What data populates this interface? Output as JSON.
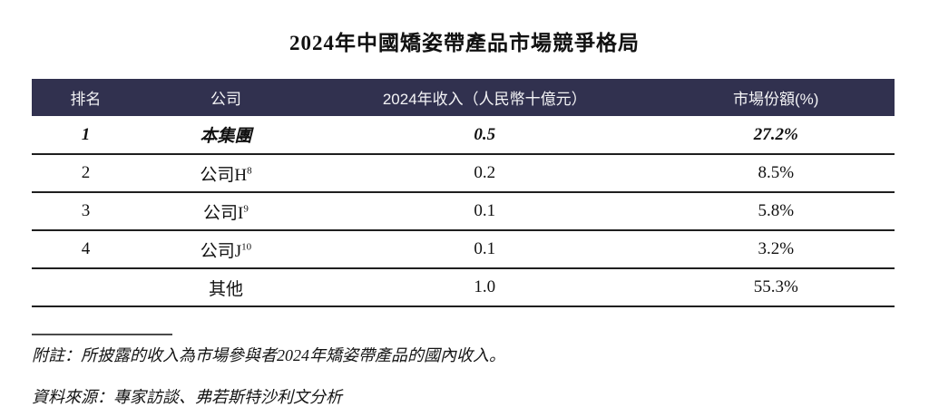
{
  "title": "2024年中國矯姿帶產品市場競爭格局",
  "table": {
    "headers": {
      "rank": "排名",
      "company": "公司",
      "revenue": "2024年收入（人民幣十億元）",
      "share": "市場份額(%)"
    },
    "rows": [
      {
        "rank": "1",
        "company": "本集團",
        "company_sup": "",
        "revenue": "0.5",
        "share": "27.2%"
      },
      {
        "rank": "2",
        "company": "公司H",
        "company_sup": "8",
        "revenue": "0.2",
        "share": "8.5%"
      },
      {
        "rank": "3",
        "company": "公司I",
        "company_sup": "9",
        "revenue": "0.1",
        "share": "5.8%"
      },
      {
        "rank": "4",
        "company": "公司J",
        "company_sup": "10",
        "revenue": "0.1",
        "share": "3.2%"
      },
      {
        "rank": "",
        "company": "其他",
        "company_sup": "",
        "revenue": "1.0",
        "share": "55.3%"
      }
    ]
  },
  "notes": {
    "footnote": "附註：所披露的收入為市場參與者2024年矯姿帶產品的國內收入。",
    "source": "資料來源：專家訪談、弗若斯特沙利文分析"
  },
  "colors": {
    "header_bg": "#31314F",
    "header_text": "#F4F4F6",
    "row_line": "#1F1F1F",
    "body_text": "#111111"
  }
}
